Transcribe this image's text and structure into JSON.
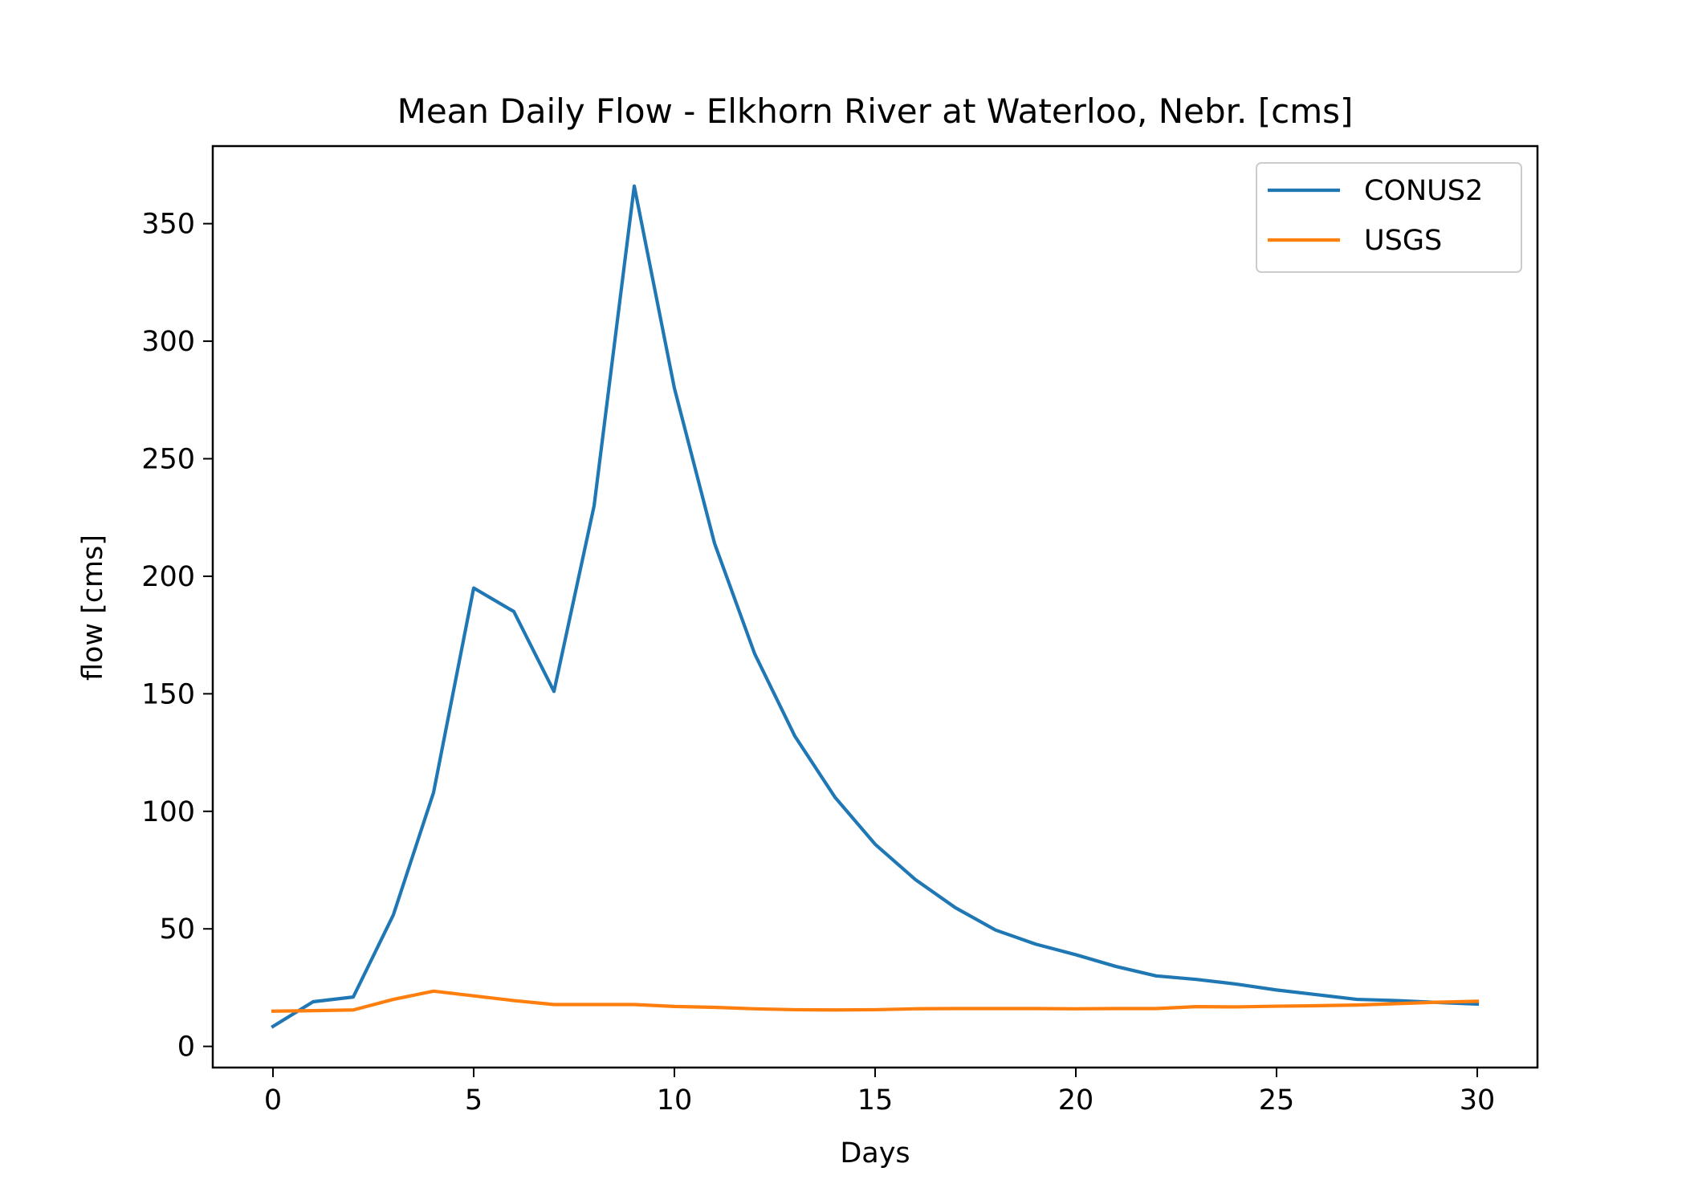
{
  "chart_data": {
    "type": "line",
    "title": "Mean Daily Flow - Elkhorn River at Waterloo, Nebr. [cms]",
    "xlabel": "Days",
    "ylabel": "flow [cms]",
    "xlim": [
      -1.5,
      31.5
    ],
    "ylim": [
      -9,
      383
    ],
    "xticks": [
      0,
      5,
      10,
      15,
      20,
      25,
      30
    ],
    "yticks": [
      0,
      50,
      100,
      150,
      200,
      250,
      300,
      350
    ],
    "grid": false,
    "legend_position": "top-right",
    "x": [
      0,
      1,
      2,
      3,
      4,
      5,
      6,
      7,
      8,
      9,
      10,
      11,
      12,
      13,
      14,
      15,
      16,
      17,
      18,
      19,
      20,
      21,
      22,
      23,
      24,
      25,
      26,
      27,
      28,
      29,
      30
    ],
    "series": [
      {
        "name": "CONUS2",
        "color": "#1f77b4",
        "values": [
          8.5,
          19,
          21,
          56,
          108,
          195,
          185,
          151,
          230,
          366,
          280,
          214,
          167,
          132,
          106,
          86,
          71,
          59,
          49.5,
          43.5,
          39,
          34,
          30,
          28.5,
          26.5,
          24,
          22,
          20,
          19.5,
          18.7,
          18
        ]
      },
      {
        "name": "USGS",
        "color": "#ff7f0e",
        "values": [
          15,
          15.2,
          15.5,
          20,
          23.5,
          21.5,
          19.5,
          17.8,
          17.8,
          17.8,
          17,
          16.6,
          16,
          15.6,
          15.5,
          15.6,
          16,
          16.1,
          16.1,
          16.1,
          16,
          16.1,
          16.1,
          16.9,
          16.8,
          17.1,
          17.3,
          17.6,
          18.2,
          18.8,
          19.2
        ]
      }
    ]
  }
}
